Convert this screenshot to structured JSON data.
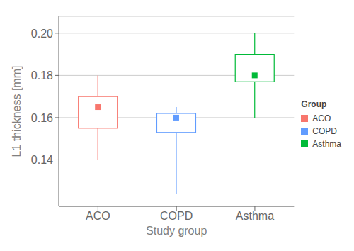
{
  "chart_data": {
    "type": "box",
    "xlabel": "Study group",
    "ylabel": "L1 thickness [mm]",
    "categories": [
      "ACO",
      "COPD",
      "Asthma"
    ],
    "colors": [
      "#F8766D",
      "#619CFF",
      "#00BA38"
    ],
    "median": [
      0.165,
      0.16,
      0.18
    ],
    "q1": [
      0.155,
      0.153,
      0.177
    ],
    "q3": [
      0.17,
      0.162,
      0.19
    ],
    "whisker_low": [
      0.14,
      0.124,
      0.16
    ],
    "whisker_high": [
      0.18,
      0.165,
      0.2
    ],
    "ylim": [
      0.118,
      0.208
    ],
    "yticks": [
      0.14,
      0.16,
      0.18,
      {
        "value": 0.2,
        "label": "0.20"
      }
    ],
    "grid": true,
    "legend": "right",
    "legend_title": "Group"
  }
}
